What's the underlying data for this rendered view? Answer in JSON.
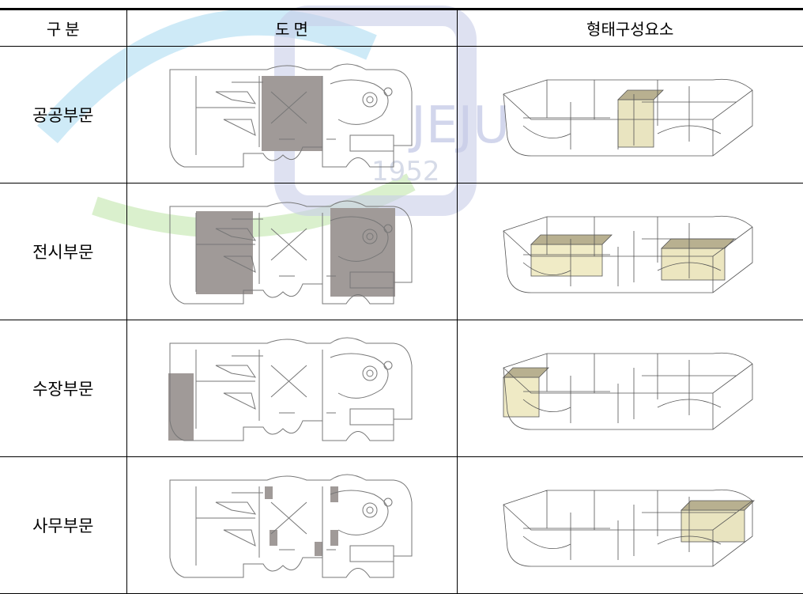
{
  "watermark": {
    "texts": [
      "JEJU",
      "1952"
    ]
  },
  "table": {
    "header": [
      "구 분",
      "도 면",
      "형태구성요소"
    ],
    "rows": [
      "공공부문",
      "전시부문",
      "수장부문",
      "사무부문"
    ]
  }
}
